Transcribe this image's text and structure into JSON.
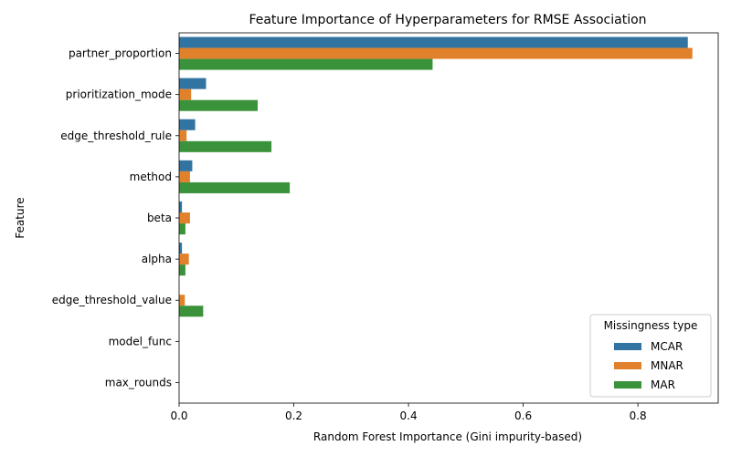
{
  "chart_data": {
    "type": "bar",
    "orientation": "horizontal",
    "title": "Feature Importance of Hyperparameters for RMSE Association",
    "xlabel": "Random Forest Importance (Gini impurity-based)",
    "ylabel": "Feature",
    "xlim": [
      0,
      0.94
    ],
    "xticks": [
      "0.0",
      "0.2",
      "0.4",
      "0.6",
      "0.8"
    ],
    "grid": false,
    "legend_placement": "bottom-right",
    "legend_title": "Missingness type",
    "categories": [
      "partner_proportion",
      "prioritization_mode",
      "edge_threshold_rule",
      "method",
      "beta",
      "alpha",
      "edge_threshold_value",
      "model_func",
      "max_rounds"
    ],
    "series": [
      {
        "name": "MCAR",
        "color": "#3274a1",
        "values": [
          0.887,
          0.047,
          0.028,
          0.023,
          0.005,
          0.005,
          0.0,
          0.0,
          0.0
        ]
      },
      {
        "name": "MNAR",
        "color": "#e1812c",
        "values": [
          0.895,
          0.021,
          0.013,
          0.019,
          0.019,
          0.017,
          0.01,
          0.0,
          0.0
        ]
      },
      {
        "name": "MAR",
        "color": "#3a923a",
        "values": [
          0.442,
          0.137,
          0.161,
          0.193,
          0.011,
          0.011,
          0.042,
          0.0,
          0.0
        ]
      }
    ]
  }
}
